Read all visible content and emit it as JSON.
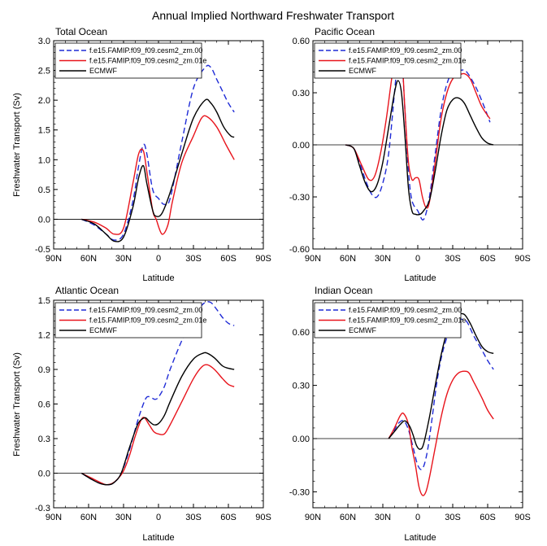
{
  "figure_title": "Annual Implied Northward Freshwater Transport",
  "colors": {
    "series0": "#1f2bd6",
    "series1": "#e8141c",
    "series2": "#000000"
  },
  "chart_data": [
    {
      "type": "line",
      "title": "Total Ocean",
      "xlabel": "Latitude",
      "ylabel": "Freshwater Transport (Sv)",
      "xlim": [
        90,
        -90
      ],
      "ylim": [
        -0.5,
        3.0
      ],
      "yticks": [
        -0.5,
        0.0,
        0.5,
        1.0,
        1.5,
        2.0,
        2.5,
        3.0
      ],
      "ytick_labels": [
        "-0.5",
        "0.0",
        "0.5",
        "1.0",
        "1.5",
        "2.0",
        "2.5",
        "3.0"
      ],
      "xticks": [
        90,
        60,
        30,
        0,
        -30,
        -60,
        -90
      ],
      "xtick_labels": [
        "90N",
        "60N",
        "30N",
        "0",
        "30S",
        "60S",
        "90S"
      ],
      "legend": {
        "placement": "top-left"
      },
      "series": [
        {
          "name": "f.e15.FAMIP.f09_f09.cesm2_zm.00",
          "style": "dashed",
          "x": [
            66,
            55,
            45,
            38,
            30,
            22,
            17,
            13,
            10,
            5,
            0,
            -5,
            -10,
            -20,
            -30,
            -40,
            -45,
            -50,
            -55,
            -60,
            -65
          ],
          "y": [
            0.0,
            -0.1,
            -0.25,
            -0.35,
            -0.25,
            0.3,
            0.9,
            1.25,
            1.1,
            0.5,
            0.35,
            0.25,
            0.35,
            1.3,
            2.2,
            2.55,
            2.55,
            2.35,
            2.15,
            1.95,
            1.8
          ]
        },
        {
          "name": "f.e15.FAMIP.f09_f09.cesm2_zm.01e",
          "style": "solid",
          "x": [
            66,
            55,
            45,
            38,
            30,
            22,
            17,
            13,
            10,
            5,
            2,
            -3,
            -8,
            -12,
            -20,
            -30,
            -37,
            -42,
            -50,
            -58,
            -65
          ],
          "y": [
            0.0,
            -0.05,
            -0.15,
            -0.25,
            -0.15,
            0.6,
            1.1,
            1.15,
            0.8,
            0.15,
            0.0,
            -0.25,
            -0.1,
            0.3,
            0.95,
            1.4,
            1.7,
            1.72,
            1.55,
            1.25,
            1.0
          ]
        },
        {
          "name": "ECMWF",
          "style": "solid",
          "x": [
            66,
            55,
            45,
            38,
            30,
            22,
            17,
            13,
            10,
            5,
            2,
            -3,
            -10,
            -20,
            -30,
            -40,
            -45,
            -50,
            -56,
            -62,
            -65
          ],
          "y": [
            0.0,
            -0.08,
            -0.25,
            -0.37,
            -0.3,
            0.2,
            0.7,
            0.9,
            0.6,
            0.15,
            0.05,
            0.1,
            0.45,
            1.1,
            1.7,
            2.0,
            1.95,
            1.8,
            1.55,
            1.4,
            1.38
          ]
        }
      ]
    },
    {
      "type": "line",
      "title": "Pacific Ocean",
      "xlabel": "Latitude",
      "ylabel": "",
      "xlim": [
        90,
        -90
      ],
      "ylim": [
        -0.6,
        0.6
      ],
      "yticks": [
        -0.6,
        -0.3,
        0.0,
        0.3,
        0.6
      ],
      "ytick_labels": [
        "-0.60",
        "-0.30",
        "0.00",
        "0.30",
        "0.60"
      ],
      "xticks": [
        90,
        60,
        30,
        0,
        -30,
        -60,
        -90
      ],
      "xtick_labels": [
        "90N",
        "60N",
        "30N",
        "0",
        "30S",
        "60S",
        "90S"
      ],
      "legend": {
        "placement": "top-left"
      },
      "series": [
        {
          "name": "f.e15.FAMIP.f09_f09.cesm2_zm.00",
          "style": "dashed",
          "x": [
            62,
            55,
            50,
            45,
            40,
            35,
            30,
            25,
            20,
            17,
            14,
            11,
            8,
            5,
            0,
            -5,
            -10,
            -15,
            -20,
            -25,
            -30,
            -37,
            -42,
            -50,
            -57,
            -62
          ],
          "y": [
            0.0,
            -0.02,
            -0.1,
            -0.2,
            -0.28,
            -0.3,
            -0.22,
            -0.05,
            0.3,
            0.5,
            0.52,
            0.2,
            -0.15,
            -0.32,
            -0.38,
            -0.43,
            -0.3,
            -0.05,
            0.2,
            0.35,
            0.42,
            0.43,
            0.42,
            0.33,
            0.22,
            0.13
          ]
        },
        {
          "name": "f.e15.FAMIP.f09_f09.cesm2_zm.01e",
          "style": "solid",
          "x": [
            62,
            55,
            48,
            42,
            37,
            32,
            27,
            22,
            18,
            15,
            13,
            11,
            8,
            5,
            2,
            -1,
            -4,
            -7,
            -10,
            -15,
            -20,
            -25,
            -30,
            -35,
            -40,
            -45,
            -50,
            -55,
            -62
          ],
          "y": [
            0.0,
            -0.02,
            -0.12,
            -0.2,
            -0.18,
            -0.05,
            0.15,
            0.4,
            0.55,
            0.58,
            0.45,
            0.2,
            -0.1,
            -0.2,
            -0.19,
            -0.2,
            -0.3,
            -0.36,
            -0.33,
            -0.1,
            0.15,
            0.3,
            0.38,
            0.4,
            0.41,
            0.38,
            0.3,
            0.22,
            0.15
          ]
        },
        {
          "name": "ECMWF",
          "style": "solid",
          "x": [
            62,
            55,
            50,
            45,
            40,
            35,
            30,
            25,
            20,
            17,
            14,
            11,
            8,
            5,
            2,
            -2,
            -5,
            -10,
            -15,
            -20,
            -25,
            -30,
            -35,
            -40,
            -45,
            -50,
            -55,
            -60,
            -65
          ],
          "y": [
            0.0,
            -0.02,
            -0.12,
            -0.22,
            -0.27,
            -0.23,
            -0.1,
            0.1,
            0.3,
            0.37,
            0.3,
            0.05,
            -0.25,
            -0.38,
            -0.4,
            -0.4,
            -0.38,
            -0.32,
            -0.15,
            0.05,
            0.2,
            0.26,
            0.27,
            0.24,
            0.17,
            0.1,
            0.04,
            0.01,
            0.0
          ]
        }
      ]
    },
    {
      "type": "line",
      "title": "Atlantic Ocean",
      "xlabel": "Latitude",
      "ylabel": "Freshwater Transport (Sv)",
      "xlim": [
        90,
        -90
      ],
      "ylim": [
        -0.3,
        1.5
      ],
      "yticks": [
        -0.3,
        0.0,
        0.3,
        0.6,
        0.9,
        1.2,
        1.5
      ],
      "ytick_labels": [
        "-0.3",
        "0.0",
        "0.3",
        "0.6",
        "0.9",
        "1.2",
        "1.5"
      ],
      "xticks": [
        90,
        60,
        30,
        0,
        -30,
        -60,
        -90
      ],
      "xtick_labels": [
        "90N",
        "60N",
        "30N",
        "0",
        "30S",
        "60S",
        "90S"
      ],
      "legend": {
        "placement": "top-left"
      },
      "series": [
        {
          "name": "f.e15.FAMIP.f09_f09.cesm2_zm.00",
          "style": "dashed",
          "x": [
            66,
            58,
            50,
            43,
            38,
            32,
            25,
            18,
            13,
            10,
            7,
            3,
            0,
            -5,
            -10,
            -20,
            -30,
            -35,
            -40,
            -45,
            -50,
            -55,
            -60,
            -65
          ],
          "y": [
            0.0,
            -0.05,
            -0.09,
            -0.1,
            -0.08,
            0.0,
            0.2,
            0.45,
            0.6,
            0.66,
            0.66,
            0.64,
            0.66,
            0.75,
            0.9,
            1.15,
            1.35,
            1.43,
            1.48,
            1.48,
            1.42,
            1.35,
            1.3,
            1.28
          ]
        },
        {
          "name": "f.e15.FAMIP.f09_f09.cesm2_zm.01e",
          "style": "solid",
          "x": [
            66,
            58,
            50,
            45,
            40,
            35,
            30,
            25,
            20,
            15,
            12,
            8,
            4,
            0,
            -5,
            -10,
            -20,
            -30,
            -37,
            -42,
            -48,
            -55,
            -60,
            -65
          ],
          "y": [
            0.0,
            -0.04,
            -0.08,
            -0.1,
            -0.09,
            -0.05,
            0.02,
            0.15,
            0.32,
            0.46,
            0.48,
            0.42,
            0.36,
            0.34,
            0.34,
            0.42,
            0.62,
            0.82,
            0.92,
            0.94,
            0.9,
            0.82,
            0.77,
            0.75
          ]
        },
        {
          "name": "ECMWF",
          "style": "solid",
          "x": [
            66,
            58,
            50,
            43,
            38,
            32,
            25,
            18,
            14,
            11,
            8,
            4,
            0,
            -5,
            -10,
            -20,
            -30,
            -38,
            -42,
            -48,
            -55,
            -60,
            -65
          ],
          "y": [
            0.0,
            -0.05,
            -0.09,
            -0.1,
            -0.08,
            0.0,
            0.22,
            0.42,
            0.47,
            0.48,
            0.45,
            0.42,
            0.43,
            0.5,
            0.62,
            0.84,
            0.99,
            1.04,
            1.04,
            1.0,
            0.93,
            0.91,
            0.9
          ]
        }
      ]
    },
    {
      "type": "line",
      "title": "Indian Ocean",
      "xlabel": "Latitude",
      "ylabel": "",
      "xlim": [
        90,
        -90
      ],
      "ylim": [
        -0.39,
        0.78
      ],
      "yticks": [
        -0.3,
        0.0,
        0.3,
        0.6
      ],
      "ytick_labels": [
        "-0.30",
        "0.00",
        "0.30",
        "0.60"
      ],
      "xticks": [
        90,
        60,
        30,
        0,
        -30,
        -60,
        -90
      ],
      "xtick_labels": [
        "90N",
        "60N",
        "30N",
        "0",
        "30S",
        "60S",
        "90S"
      ],
      "legend": {
        "placement": "top-left"
      },
      "series": [
        {
          "name": "f.e15.FAMIP.f09_f09.cesm2_zm.00",
          "style": "dashed",
          "x": [
            25,
            20,
            16,
            12,
            8,
            4,
            0,
            -4,
            -8,
            -12,
            -16,
            -20,
            -25,
            -30,
            -35,
            -40,
            -43,
            -48,
            -55,
            -60,
            -65
          ],
          "y": [
            0.0,
            0.05,
            0.09,
            0.1,
            0.05,
            -0.05,
            -0.15,
            -0.17,
            -0.08,
            0.1,
            0.3,
            0.45,
            0.57,
            0.64,
            0.67,
            0.67,
            0.65,
            0.58,
            0.5,
            0.44,
            0.39
          ]
        },
        {
          "name": "f.e15.FAMIP.f09_f09.cesm2_zm.01e",
          "style": "solid",
          "x": [
            25,
            20,
            15,
            12,
            8,
            5,
            2,
            -1,
            -4,
            -7,
            -10,
            -15,
            -20,
            -25,
            -30,
            -35,
            -40,
            -44,
            -48,
            -55,
            -60,
            -65
          ],
          "y": [
            0.0,
            0.06,
            0.13,
            0.14,
            0.08,
            -0.05,
            -0.15,
            -0.27,
            -0.32,
            -0.3,
            -0.22,
            -0.05,
            0.12,
            0.25,
            0.33,
            0.37,
            0.38,
            0.37,
            0.32,
            0.23,
            0.16,
            0.11
          ]
        },
        {
          "name": "ECMWF",
          "style": "solid",
          "x": [
            25,
            20,
            15,
            11,
            7,
            4,
            1,
            -2,
            -5,
            -10,
            -15,
            -20,
            -25,
            -30,
            -35,
            -40,
            -45,
            -50,
            -55,
            -60,
            -65
          ],
          "y": [
            0.0,
            0.04,
            0.08,
            0.1,
            0.07,
            0.02,
            -0.04,
            -0.06,
            -0.03,
            0.12,
            0.3,
            0.47,
            0.6,
            0.67,
            0.7,
            0.7,
            0.65,
            0.58,
            0.52,
            0.49,
            0.48
          ]
        }
      ]
    }
  ]
}
